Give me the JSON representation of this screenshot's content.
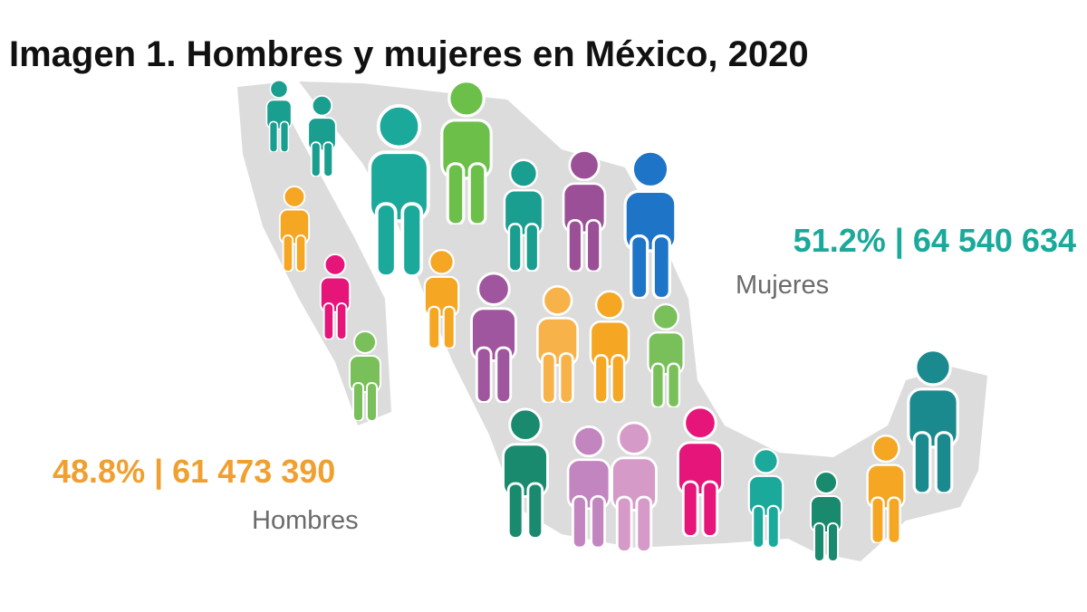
{
  "title": "Imagen 1. Hombres y mujeres en México, 2020",
  "stats": [
    {
      "value_text": "51.2% | 64 540 634",
      "label": "Mujeres"
    },
    {
      "value_text": "48.8% | 61 473 390",
      "label": "Hombres"
    }
  ]
}
